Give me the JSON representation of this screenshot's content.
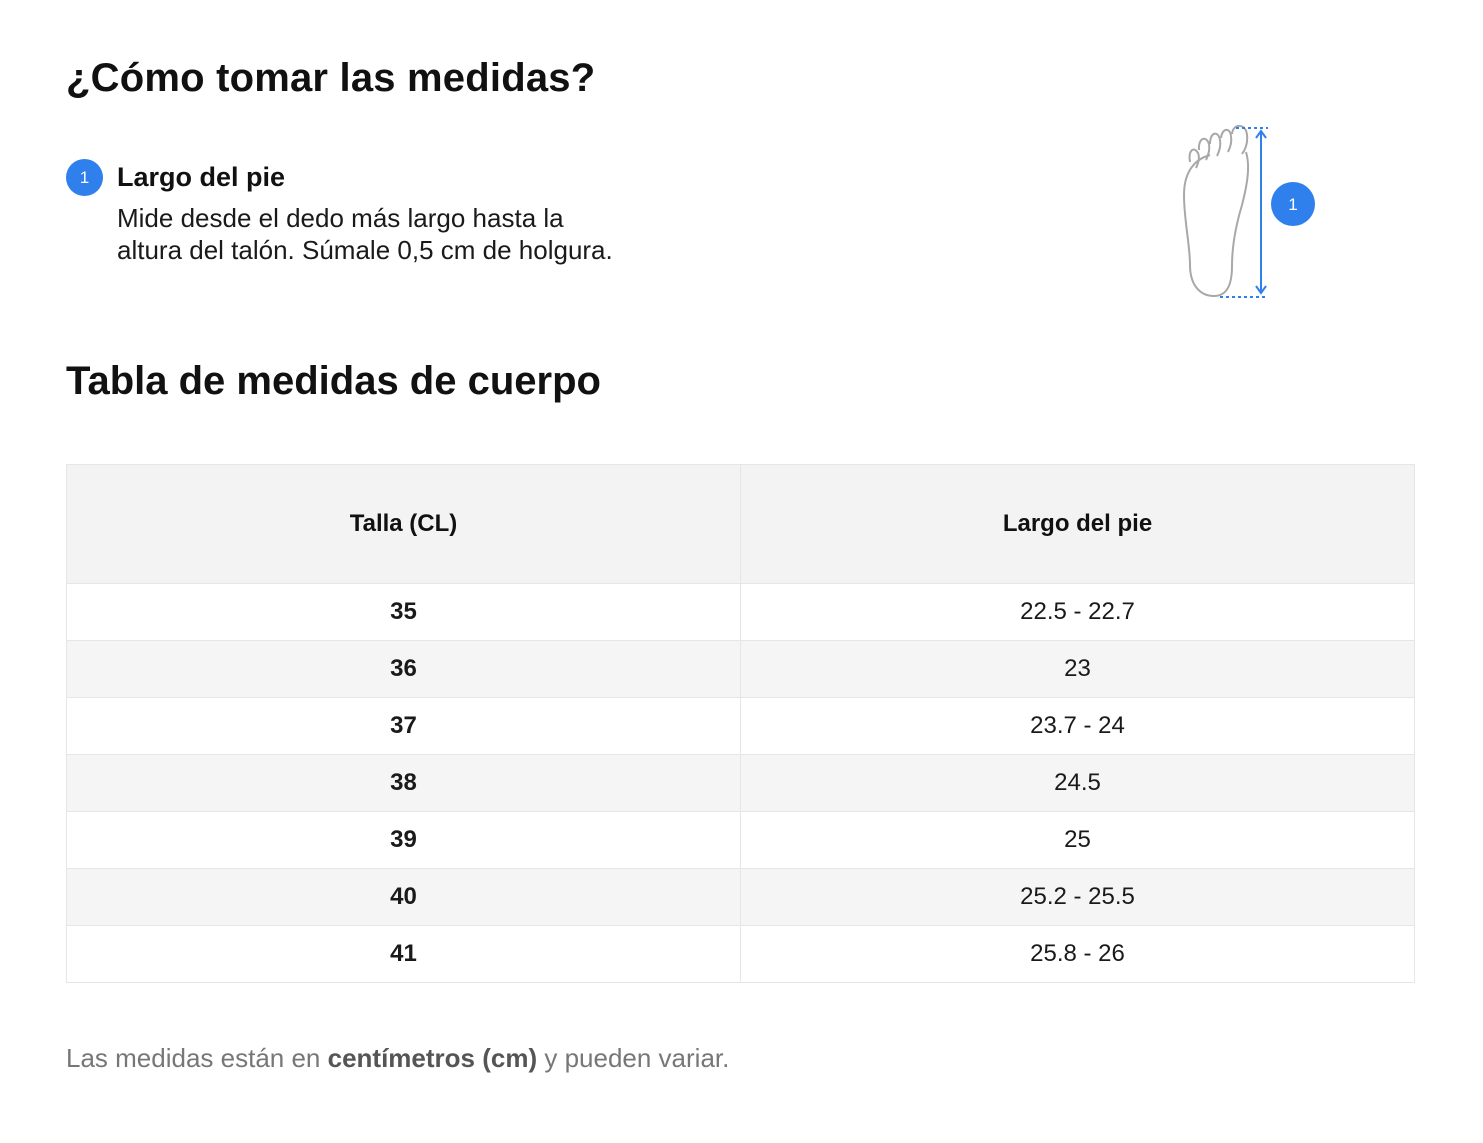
{
  "how_to": {
    "title": "¿Cómo tomar las medidas?",
    "step": {
      "number": "1",
      "title": "Largo del pie",
      "description_line1": "Mide desde el dedo más largo hasta la",
      "description_line2": "altura del talón. Súmale 0,5 cm de holgura."
    },
    "figure_badge": "1"
  },
  "table_section": {
    "title": "Tabla de medidas de cuerpo",
    "columns": [
      "Talla (CL)",
      "Largo del pie"
    ],
    "rows": [
      {
        "size": "35",
        "length": "22.5 - 22.7"
      },
      {
        "size": "36",
        "length": "23"
      },
      {
        "size": "37",
        "length": "23.7 - 24"
      },
      {
        "size": "38",
        "length": "24.5"
      },
      {
        "size": "39",
        "length": "25"
      },
      {
        "size": "40",
        "length": "25.2 - 25.5"
      },
      {
        "size": "41",
        "length": "25.8 - 26"
      }
    ]
  },
  "note": {
    "prefix": "Las medidas están en ",
    "bold": "centímetros (cm)",
    "suffix": " y pueden variar."
  },
  "colors": {
    "accent": "#2f80ed",
    "header_bg": "#f3f3f3",
    "stripe_bg": "#f5f5f5",
    "muted_text": "#777777"
  },
  "icons": {
    "figure": "foot-outline-icon",
    "measure": "vertical-measure-arrow-icon"
  }
}
